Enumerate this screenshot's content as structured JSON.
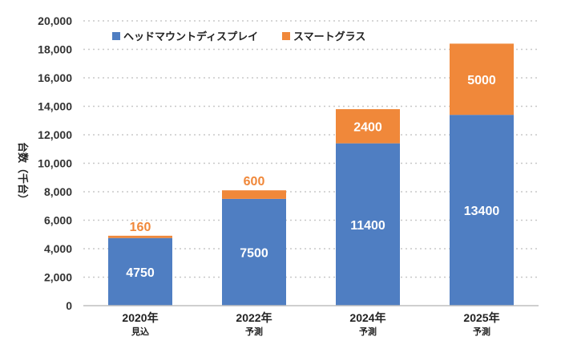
{
  "chart_data": {
    "type": "bar",
    "stacked": true,
    "ylabel": "台数（千台）",
    "ylim": [
      0,
      20000
    ],
    "yticks": [
      "0",
      "2,000",
      "4,000",
      "6,000",
      "8,000",
      "10,000",
      "12,000",
      "14,000",
      "16,000",
      "18,000",
      "20,000"
    ],
    "grid": true,
    "legend_position": "top-left",
    "categories": [
      {
        "label": "2020年",
        "sub": "見込"
      },
      {
        "label": "2022年",
        "sub": "予測"
      },
      {
        "label": "2024年",
        "sub": "予測"
      },
      {
        "label": "2025年",
        "sub": "予測"
      }
    ],
    "series": [
      {
        "name": "ヘッドマウントディスプレイ",
        "color": "#4F7EC2",
        "values": [
          4750,
          7500,
          11400,
          13400
        ]
      },
      {
        "name": "スマートグラス",
        "color": "#F0883A",
        "values": [
          160,
          600,
          2400,
          5000
        ]
      }
    ]
  }
}
